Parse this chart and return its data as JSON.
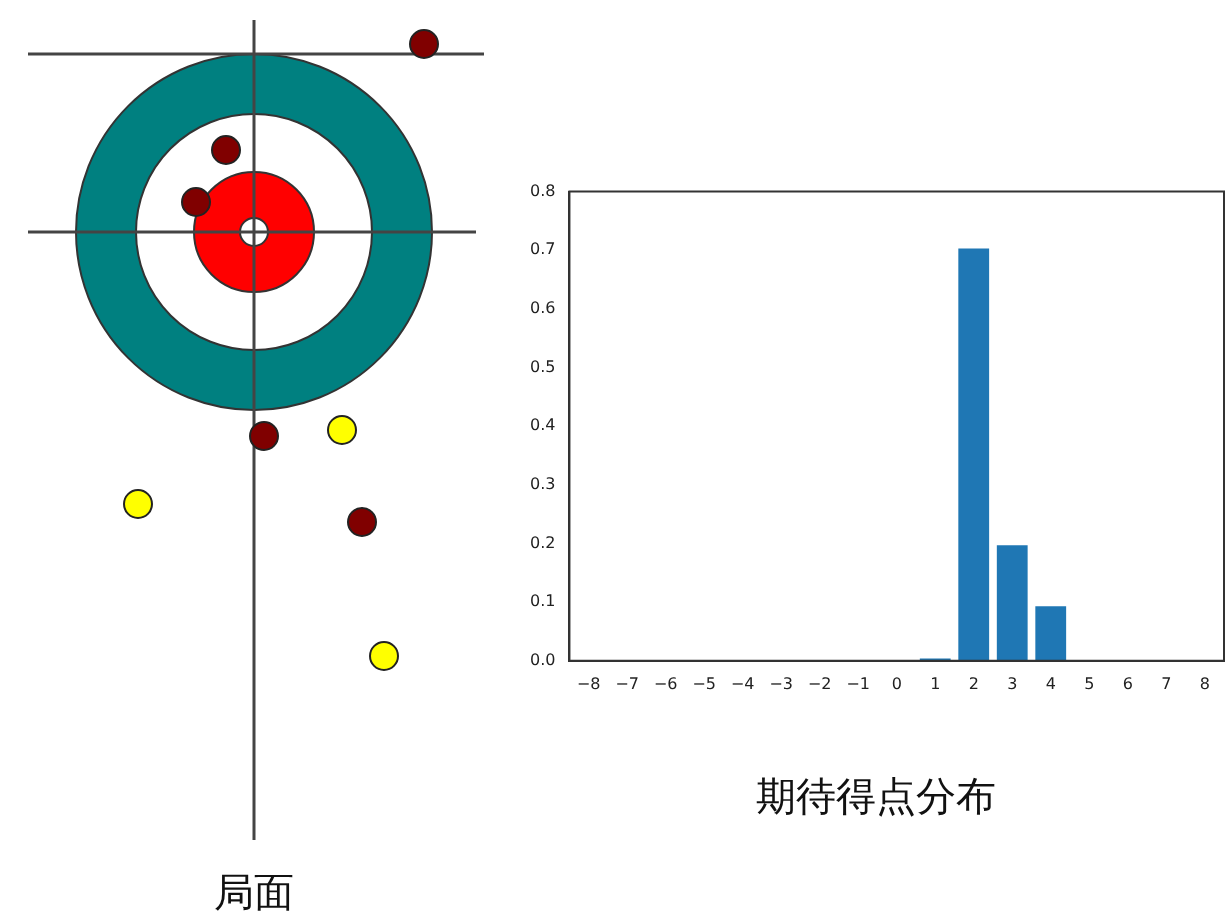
{
  "chart_data": {
    "type": "bar",
    "title": "期待得点分布",
    "annotations": [
      "局面"
    ],
    "categories": [
      "−8",
      "−7",
      "−6",
      "−5",
      "−4",
      "−3",
      "−2",
      "−1",
      "0",
      "1",
      "2",
      "3",
      "4",
      "5",
      "6",
      "7",
      "8"
    ],
    "values": [
      0,
      0,
      0,
      0,
      0,
      0,
      0,
      0,
      0,
      0.004,
      0.703,
      0.197,
      0.093,
      0,
      0,
      0,
      0
    ],
    "color": "#1f77b4",
    "ylim": [
      0,
      0.8
    ],
    "yticks": [
      {
        "value": 0,
        "label": "0.0"
      },
      0.1,
      0.2,
      0.3,
      0.4,
      0.5,
      0.6,
      0.7,
      0.8
    ],
    "grid": false,
    "legend": false
  }
}
